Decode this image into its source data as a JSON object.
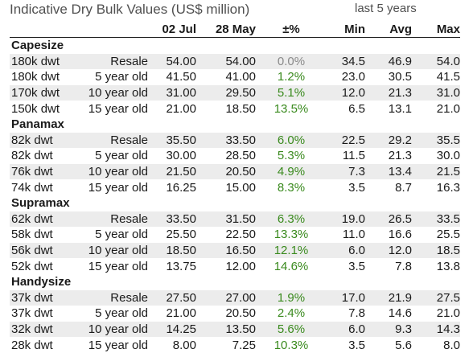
{
  "title": "Indicative Dry Bulk Values (US$ million)",
  "subtitle": "last 5 years",
  "columns": {
    "date1": "02 Jul",
    "date2": "28 May",
    "change": "±%",
    "min": "Min",
    "avg": "Avg",
    "max": "Max"
  },
  "colors": {
    "positive": "#3a8a1e",
    "neutral": "#8a8a8a",
    "row_shade": "#ececec"
  },
  "sections": [
    {
      "name": "Capesize",
      "rows": [
        {
          "size": "180k dwt",
          "age": "Resale",
          "v1": "54.00",
          "v2": "54.00",
          "pct": "0.0%",
          "tone": "neutral",
          "min": "34.5",
          "avg": "46.9",
          "max": "54.0"
        },
        {
          "size": "180k dwt",
          "age": "5 year old",
          "v1": "41.50",
          "v2": "41.00",
          "pct": "1.2%",
          "tone": "positive",
          "min": "23.0",
          "avg": "30.5",
          "max": "41.5"
        },
        {
          "size": "170k dwt",
          "age": "10 year old",
          "v1": "31.00",
          "v2": "29.50",
          "pct": "5.1%",
          "tone": "positive",
          "min": "12.0",
          "avg": "21.3",
          "max": "31.0"
        },
        {
          "size": "150k dwt",
          "age": "15 year old",
          "v1": "21.00",
          "v2": "18.50",
          "pct": "13.5%",
          "tone": "positive",
          "min": "6.5",
          "avg": "13.1",
          "max": "21.0"
        }
      ]
    },
    {
      "name": "Panamax",
      "rows": [
        {
          "size": "82k dwt",
          "age": "Resale",
          "v1": "35.50",
          "v2": "33.50",
          "pct": "6.0%",
          "tone": "positive",
          "min": "22.5",
          "avg": "29.2",
          "max": "35.5"
        },
        {
          "size": "82k dwt",
          "age": "5 year old",
          "v1": "30.00",
          "v2": "28.50",
          "pct": "5.3%",
          "tone": "positive",
          "min": "11.5",
          "avg": "21.3",
          "max": "30.0"
        },
        {
          "size": "76k dwt",
          "age": "10 year old",
          "v1": "21.50",
          "v2": "20.50",
          "pct": "4.9%",
          "tone": "positive",
          "min": "7.3",
          "avg": "13.4",
          "max": "21.5"
        },
        {
          "size": "74k dwt",
          "age": "15 year old",
          "v1": "16.25",
          "v2": "15.00",
          "pct": "8.3%",
          "tone": "positive",
          "min": "3.5",
          "avg": "8.7",
          "max": "16.3"
        }
      ]
    },
    {
      "name": "Supramax",
      "rows": [
        {
          "size": "62k dwt",
          "age": "Resale",
          "v1": "33.50",
          "v2": "31.50",
          "pct": "6.3%",
          "tone": "positive",
          "min": "19.0",
          "avg": "26.5",
          "max": "33.5"
        },
        {
          "size": "58k dwt",
          "age": "5 year old",
          "v1": "25.50",
          "v2": "22.50",
          "pct": "13.3%",
          "tone": "positive",
          "min": "11.0",
          "avg": "16.6",
          "max": "25.5"
        },
        {
          "size": "56k dwt",
          "age": "10 year old",
          "v1": "18.50",
          "v2": "16.50",
          "pct": "12.1%",
          "tone": "positive",
          "min": "6.0",
          "avg": "12.0",
          "max": "18.5"
        },
        {
          "size": "52k dwt",
          "age": "15 year old",
          "v1": "13.75",
          "v2": "12.00",
          "pct": "14.6%",
          "tone": "positive",
          "min": "3.5",
          "avg": "7.8",
          "max": "13.8"
        }
      ]
    },
    {
      "name": "Handysize",
      "rows": [
        {
          "size": "37k dwt",
          "age": "Resale",
          "v1": "27.50",
          "v2": "27.00",
          "pct": "1.9%",
          "tone": "positive",
          "min": "17.0",
          "avg": "21.9",
          "max": "27.5"
        },
        {
          "size": "37k dwt",
          "age": "5 year old",
          "v1": "21.00",
          "v2": "20.50",
          "pct": "2.4%",
          "tone": "positive",
          "min": "7.8",
          "avg": "14.6",
          "max": "21.0"
        },
        {
          "size": "32k dwt",
          "age": "10 year old",
          "v1": "14.25",
          "v2": "13.50",
          "pct": "5.6%",
          "tone": "positive",
          "min": "6.0",
          "avg": "9.3",
          "max": "14.3"
        },
        {
          "size": "28k dwt",
          "age": "15 year old",
          "v1": "8.00",
          "v2": "7.25",
          "pct": "10.3%",
          "tone": "positive",
          "min": "3.5",
          "avg": "5.6",
          "max": "8.0"
        }
      ]
    }
  ]
}
